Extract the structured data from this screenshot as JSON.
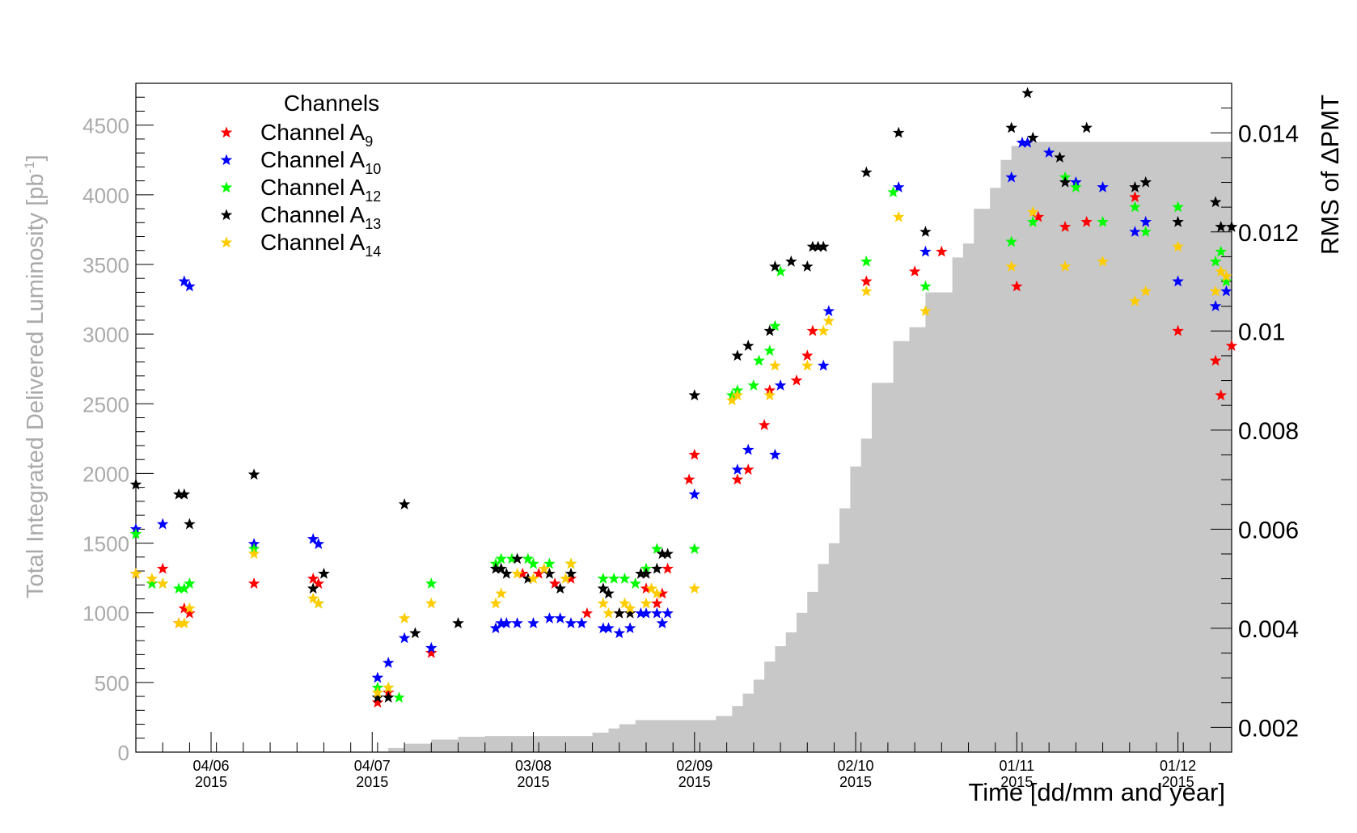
{
  "chart_data": {
    "type": "scatter",
    "xlabel": "Time [dd/mm and year]",
    "ylabel_left": "Total Integrated Delivered Luminosity [pb",
    "ylabel_left_sup": "-1",
    "ylabel_left_end": "]",
    "ylabel_right": "RMS of ΔPMT",
    "x_ticks": [
      {
        "x": "2015-06-04",
        "date": "04/06",
        "year": "2015"
      },
      {
        "x": "2015-07-04",
        "date": "04/07",
        "year": "2015"
      },
      {
        "x": "2015-08-03",
        "date": "03/08",
        "year": "2015"
      },
      {
        "x": "2015-09-02",
        "date": "02/09",
        "year": "2015"
      },
      {
        "x": "2015-10-02",
        "date": "02/10",
        "year": "2015"
      },
      {
        "x": "2015-11-01",
        "date": "01/11",
        "year": "2015"
      },
      {
        "x": "2015-12-01",
        "date": "01/12",
        "year": "2015"
      }
    ],
    "xlim": [
      "2015-05-21",
      "2015-12-11"
    ],
    "ylim_left": [
      0,
      4800
    ],
    "yticks_left": [
      "0",
      "500",
      "1000",
      "1500",
      "2000",
      "2500",
      "3000",
      "3500",
      "4000",
      "4500"
    ],
    "ylim_right": [
      0.0015,
      0.015
    ],
    "yticks_right": [
      "0.002",
      "0.004",
      "0.006",
      "0.008",
      "0.01",
      "0.012",
      "0.014"
    ],
    "colors": {
      "luminosity_fill": "#c8c8c8",
      "left_axis_text": "#aaaaaa",
      "Channel A9": "#ff0000",
      "Channel A10": "#0000ff",
      "Channel A12": "#00ff00",
      "Channel A13": "#000000",
      "Channel A14": "#ffcc00"
    },
    "luminosity_area": {
      "name": "Total Integrated Delivered Luminosity",
      "x": [
        "2015-05-21",
        "2015-07-01",
        "2015-07-07",
        "2015-07-10",
        "2015-07-15",
        "2015-07-20",
        "2015-07-25",
        "2015-08-10",
        "2015-08-14",
        "2015-08-17",
        "2015-08-19",
        "2015-08-22",
        "2015-08-25",
        "2015-09-02",
        "2015-09-06",
        "2015-09-09",
        "2015-09-11",
        "2015-09-13",
        "2015-09-15",
        "2015-09-17",
        "2015-09-19",
        "2015-09-21",
        "2015-09-23",
        "2015-09-25",
        "2015-09-27",
        "2015-09-29",
        "2015-10-01",
        "2015-10-03",
        "2015-10-05",
        "2015-10-07",
        "2015-10-09",
        "2015-10-12",
        "2015-10-15",
        "2015-10-20",
        "2015-10-22",
        "2015-10-24",
        "2015-10-27",
        "2015-10-29",
        "2015-10-31",
        "2015-11-02",
        "2015-12-11"
      ],
      "y": [
        0,
        0,
        30,
        60,
        90,
        110,
        115,
        115,
        140,
        170,
        200,
        230,
        230,
        230,
        260,
        330,
        420,
        520,
        650,
        760,
        860,
        1000,
        1150,
        1350,
        1500,
        1750,
        2050,
        2250,
        2650,
        2650,
        2950,
        3050,
        3300,
        3550,
        3650,
        3900,
        4050,
        4250,
        4350,
        4380,
        4380
      ]
    },
    "legend": {
      "title": "Channels",
      "entries": [
        {
          "prefix": "Channel A",
          "sub": "9"
        },
        {
          "prefix": "Channel A",
          "sub": "10"
        },
        {
          "prefix": "Channel A",
          "sub": "12"
        },
        {
          "prefix": "Channel A",
          "sub": "13"
        },
        {
          "prefix": "Channel A",
          "sub": "14"
        }
      ],
      "placement": "top-left"
    },
    "series": [
      {
        "name": "Channel A9",
        "color": "#ff0000",
        "x": [
          "2015-05-21",
          "2015-05-24",
          "2015-05-26",
          "2015-05-29",
          "2015-05-30",
          "2015-05-31",
          "2015-06-12",
          "2015-06-23",
          "2015-06-24",
          "2015-07-05",
          "2015-07-07",
          "2015-07-15",
          "2015-08-01",
          "2015-08-04",
          "2015-08-07",
          "2015-08-10",
          "2015-08-13",
          "2015-08-19",
          "2015-08-24",
          "2015-08-26",
          "2015-08-27",
          "2015-08-28",
          "2015-09-01",
          "2015-09-02",
          "2015-09-10",
          "2015-09-12",
          "2015-09-15",
          "2015-09-16",
          "2015-09-21",
          "2015-09-23",
          "2015-09-24",
          "2015-10-04",
          "2015-10-13",
          "2015-10-18",
          "2015-11-01",
          "2015-11-05",
          "2015-11-10",
          "2015-11-14",
          "2015-11-23",
          "2015-12-01",
          "2015-12-08",
          "2015-12-09",
          "2015-12-11"
        ],
        "y": [
          0.0051,
          0.0049,
          0.0052,
          0.0041,
          0.0044,
          0.0043,
          0.0049,
          0.005,
          0.0049,
          0.0025,
          0.0027,
          0.0035,
          0.0051,
          0.0051,
          0.0049,
          0.005,
          0.0043,
          0.0043,
          0.0048,
          0.0045,
          0.0047,
          0.0052,
          0.007,
          0.0075,
          0.007,
          0.0072,
          0.0081,
          0.0088,
          0.009,
          0.0095,
          0.01,
          0.011,
          0.0112,
          0.0116,
          0.0109,
          0.0123,
          0.0121,
          0.0122,
          0.0127,
          0.01,
          0.0094,
          0.0087,
          0.0097
        ]
      },
      {
        "name": "Channel A10",
        "color": "#0000ff",
        "x": [
          "2015-05-21",
          "2015-05-26",
          "2015-05-30",
          "2015-05-31",
          "2015-06-12",
          "2015-06-23",
          "2015-06-24",
          "2015-07-05",
          "2015-07-07",
          "2015-07-10",
          "2015-07-15",
          "2015-07-27",
          "2015-07-28",
          "2015-07-29",
          "2015-07-31",
          "2015-08-03",
          "2015-08-06",
          "2015-08-08",
          "2015-08-10",
          "2015-08-12",
          "2015-08-16",
          "2015-08-17",
          "2015-08-19",
          "2015-08-21",
          "2015-08-23",
          "2015-08-24",
          "2015-08-26",
          "2015-08-27",
          "2015-08-28",
          "2015-09-02",
          "2015-09-10",
          "2015-09-12",
          "2015-09-17",
          "2015-09-18",
          "2015-09-26",
          "2015-09-27",
          "2015-10-10",
          "2015-10-15",
          "2015-10-31",
          "2015-11-02",
          "2015-11-03",
          "2015-11-07",
          "2015-11-12",
          "2015-11-17",
          "2015-11-23",
          "2015-11-25",
          "2015-12-01",
          "2015-12-08",
          "2015-12-10"
        ],
        "y": [
          0.006,
          0.0061,
          0.011,
          0.0109,
          0.0057,
          0.0058,
          0.0057,
          0.003,
          0.0033,
          0.0038,
          0.0036,
          0.004,
          0.0041,
          0.0041,
          0.0041,
          0.0041,
          0.0042,
          0.0042,
          0.0041,
          0.0041,
          0.004,
          0.004,
          0.0039,
          0.004,
          0.0043,
          0.0043,
          0.0043,
          0.0041,
          0.0043,
          0.0067,
          0.0072,
          0.0076,
          0.0075,
          0.0089,
          0.0093,
          0.0104,
          0.0129,
          0.0116,
          0.0131,
          0.0138,
          0.0138,
          0.0136,
          0.013,
          0.0129,
          0.012,
          0.0122,
          0.011,
          0.0105,
          0.0108
        ]
      },
      {
        "name": "Channel A12",
        "color": "#00ff00",
        "x": [
          "2015-05-21",
          "2015-05-24",
          "2015-05-26",
          "2015-05-29",
          "2015-05-30",
          "2015-05-31",
          "2015-06-12",
          "2015-06-24",
          "2015-07-05",
          "2015-07-07",
          "2015-07-09",
          "2015-07-15",
          "2015-07-27",
          "2015-07-28",
          "2015-07-30",
          "2015-08-02",
          "2015-08-03",
          "2015-08-06",
          "2015-08-10",
          "2015-08-16",
          "2015-08-18",
          "2015-08-20",
          "2015-08-22",
          "2015-08-24",
          "2015-08-26",
          "2015-09-02",
          "2015-09-09",
          "2015-09-10",
          "2015-09-13",
          "2015-09-14",
          "2015-09-16",
          "2015-09-17",
          "2015-09-18",
          "2015-10-04",
          "2015-10-09",
          "2015-10-15",
          "2015-10-31",
          "2015-11-04",
          "2015-11-10",
          "2015-11-12",
          "2015-11-17",
          "2015-11-23",
          "2015-11-25",
          "2015-12-01",
          "2015-12-08",
          "2015-12-09",
          "2015-12-10"
        ],
        "y": [
          0.0059,
          0.0049,
          0.0049,
          0.0048,
          0.0048,
          0.0049,
          0.0056,
          0.0045,
          0.0028,
          0.0028,
          0.0026,
          0.0049,
          0.0053,
          0.0054,
          0.0054,
          0.0054,
          0.0053,
          0.0053,
          0.0053,
          0.005,
          0.005,
          0.005,
          0.0049,
          0.0052,
          0.0056,
          0.0056,
          0.0087,
          0.0088,
          0.0089,
          0.0094,
          0.0096,
          0.0101,
          0.0112,
          0.0114,
          0.0128,
          0.0109,
          0.0118,
          0.0122,
          0.0131,
          0.0129,
          0.0122,
          0.0125,
          0.012,
          0.0125,
          0.0114,
          0.0116,
          0.011
        ]
      },
      {
        "name": "Channel A13",
        "color": "#000000",
        "x": [
          "2015-05-21",
          "2015-05-29",
          "2015-05-30",
          "2015-05-31",
          "2015-06-12",
          "2015-06-23",
          "2015-06-25",
          "2015-07-05",
          "2015-07-07",
          "2015-07-10",
          "2015-07-12",
          "2015-07-20",
          "2015-07-27",
          "2015-07-28",
          "2015-07-29",
          "2015-07-31",
          "2015-08-02",
          "2015-08-06",
          "2015-08-08",
          "2015-08-10",
          "2015-08-16",
          "2015-08-17",
          "2015-08-19",
          "2015-08-21",
          "2015-08-23",
          "2015-08-24",
          "2015-08-26",
          "2015-08-27",
          "2015-08-28",
          "2015-09-02",
          "2015-09-10",
          "2015-09-12",
          "2015-09-16",
          "2015-09-17",
          "2015-09-20",
          "2015-09-23",
          "2015-09-24",
          "2015-09-25",
          "2015-09-26",
          "2015-10-04",
          "2015-10-10",
          "2015-10-15",
          "2015-10-31",
          "2015-11-03",
          "2015-11-04",
          "2015-11-09",
          "2015-11-10",
          "2015-11-14",
          "2015-11-23",
          "2015-11-25",
          "2015-12-01",
          "2015-12-08",
          "2015-12-09",
          "2015-12-11"
        ],
        "y": [
          0.0069,
          0.0067,
          0.0067,
          0.0061,
          0.0071,
          0.0048,
          0.0051,
          0.0026,
          0.0026,
          0.0065,
          0.0039,
          0.0041,
          0.0052,
          0.0052,
          0.0051,
          0.0054,
          0.005,
          0.0051,
          0.0048,
          0.0051,
          0.0048,
          0.0047,
          0.0043,
          0.0043,
          0.0051,
          0.0051,
          0.0052,
          0.0055,
          0.0055,
          0.0087,
          0.0095,
          0.0097,
          0.01,
          0.0113,
          0.0114,
          0.0113,
          0.0117,
          0.0117,
          0.0117,
          0.0132,
          0.014,
          0.012,
          0.0141,
          0.0148,
          0.0139,
          0.0135,
          0.013,
          0.0141,
          0.0129,
          0.013,
          0.0122,
          0.0126,
          0.0121,
          0.0121
        ]
      },
      {
        "name": "Channel A14",
        "color": "#ffcc00",
        "x": [
          "2015-05-21",
          "2015-05-24",
          "2015-05-26",
          "2015-05-29",
          "2015-05-30",
          "2015-05-31",
          "2015-06-12",
          "2015-06-23",
          "2015-06-24",
          "2015-07-05",
          "2015-07-07",
          "2015-07-10",
          "2015-07-15",
          "2015-07-27",
          "2015-07-28",
          "2015-07-31",
          "2015-08-03",
          "2015-08-05",
          "2015-08-09",
          "2015-08-10",
          "2015-08-16",
          "2015-08-17",
          "2015-08-20",
          "2015-08-21",
          "2015-08-24",
          "2015-08-25",
          "2015-08-26",
          "2015-09-02",
          "2015-09-09",
          "2015-09-10",
          "2015-09-16",
          "2015-09-17",
          "2015-09-23",
          "2015-09-26",
          "2015-09-27",
          "2015-10-04",
          "2015-10-10",
          "2015-10-15",
          "2015-10-31",
          "2015-11-04",
          "2015-11-10",
          "2015-11-17",
          "2015-11-23",
          "2015-11-25",
          "2015-12-01",
          "2015-12-08",
          "2015-12-09",
          "2015-12-10"
        ],
        "y": [
          0.0051,
          0.005,
          0.0049,
          0.0041,
          0.0041,
          0.0044,
          0.0055,
          0.0046,
          0.0045,
          0.0027,
          0.0028,
          0.0042,
          0.0045,
          0.0045,
          0.0047,
          0.0051,
          0.005,
          0.0052,
          0.005,
          0.0053,
          0.0045,
          0.0043,
          0.0045,
          0.0044,
          0.0045,
          0.0048,
          0.0047,
          0.0048,
          0.0086,
          0.0087,
          0.0087,
          0.0093,
          0.0093,
          0.01,
          0.0102,
          0.0108,
          0.0123,
          0.0104,
          0.0113,
          0.0124,
          0.0113,
          0.0114,
          0.0106,
          0.0108,
          0.0117,
          0.0108,
          0.0112,
          0.0111
        ]
      }
    ]
  }
}
